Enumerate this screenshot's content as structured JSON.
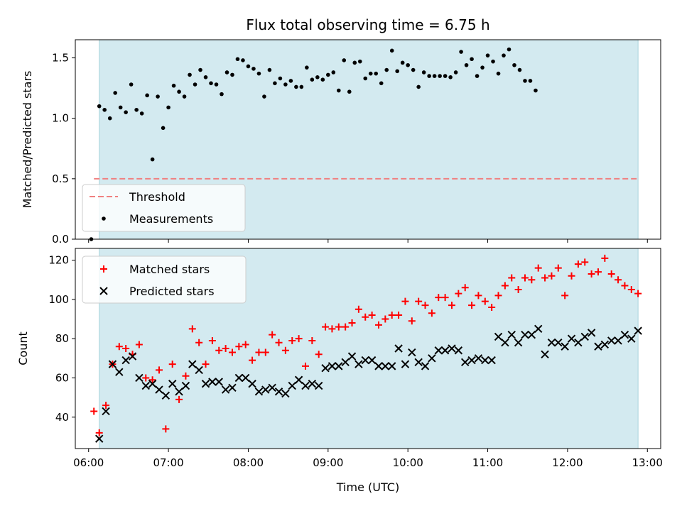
{
  "chart_data": [
    {
      "type": "scatter",
      "title": "Flux total observing time = 6.75 h",
      "ylabel": "Matched/Predicted stars",
      "xlim": [
        "05:50",
        "13:10"
      ],
      "ylim": [
        0,
        1.65
      ],
      "yticks": [
        0,
        0.5,
        1.0,
        1.5
      ],
      "ytick_labels": [
        "0.0",
        "0.5",
        "1.0",
        "1.5"
      ],
      "observing_window": [
        "06:08",
        "12:53"
      ],
      "observing_window_color": "#d3eaf0",
      "legend_position": "lower-left",
      "threshold": {
        "name": "Threshold",
        "value": 0.5,
        "x_range": [
          "06:04",
          "12:53"
        ],
        "color": "#f08080",
        "style": "dashed"
      },
      "series": [
        {
          "name": "Measurements",
          "color": "#000000",
          "marker": "dot",
          "points": [
            [
              "06:02",
              0.0
            ],
            [
              "06:08",
              1.1
            ],
            [
              "06:12",
              1.07
            ],
            [
              "06:16",
              1.0
            ],
            [
              "06:20",
              1.21
            ],
            [
              "06:24",
              1.09
            ],
            [
              "06:28",
              1.05
            ],
            [
              "06:32",
              1.28
            ],
            [
              "06:36",
              1.07
            ],
            [
              "06:40",
              1.04
            ],
            [
              "06:44",
              1.19
            ],
            [
              "06:48",
              0.66
            ],
            [
              "06:52",
              1.18
            ],
            [
              "06:56",
              0.92
            ],
            [
              "07:00",
              1.09
            ],
            [
              "07:04",
              1.27
            ],
            [
              "07:08",
              1.22
            ],
            [
              "07:12",
              1.18
            ],
            [
              "07:16",
              1.36
            ],
            [
              "07:20",
              1.28
            ],
            [
              "07:24",
              1.4
            ],
            [
              "07:28",
              1.34
            ],
            [
              "07:32",
              1.29
            ],
            [
              "07:36",
              1.28
            ],
            [
              "07:40",
              1.2
            ],
            [
              "07:44",
              1.38
            ],
            [
              "07:48",
              1.36
            ],
            [
              "07:52",
              1.49
            ],
            [
              "07:56",
              1.48
            ],
            [
              "08:00",
              1.43
            ],
            [
              "08:04",
              1.41
            ],
            [
              "08:08",
              1.37
            ],
            [
              "08:12",
              1.18
            ],
            [
              "08:16",
              1.4
            ],
            [
              "08:20",
              1.29
            ],
            [
              "08:24",
              1.33
            ],
            [
              "08:28",
              1.28
            ],
            [
              "08:32",
              1.31
            ],
            [
              "08:36",
              1.26
            ],
            [
              "08:40",
              1.26
            ],
            [
              "08:44",
              1.42
            ],
            [
              "08:48",
              1.32
            ],
            [
              "08:52",
              1.34
            ],
            [
              "08:56",
              1.32
            ],
            [
              "09:00",
              1.36
            ],
            [
              "09:04",
              1.38
            ],
            [
              "09:08",
              1.23
            ],
            [
              "09:12",
              1.48
            ],
            [
              "09:16",
              1.22
            ],
            [
              "09:20",
              1.46
            ],
            [
              "09:24",
              1.47
            ],
            [
              "09:28",
              1.33
            ],
            [
              "09:32",
              1.37
            ],
            [
              "09:36",
              1.37
            ],
            [
              "09:40",
              1.29
            ],
            [
              "09:44",
              1.4
            ],
            [
              "09:48",
              1.56
            ],
            [
              "09:52",
              1.39
            ],
            [
              "09:56",
              1.46
            ],
            [
              "10:00",
              1.44
            ],
            [
              "10:04",
              1.4
            ],
            [
              "10:08",
              1.26
            ],
            [
              "10:12",
              1.38
            ],
            [
              "10:16",
              1.35
            ],
            [
              "10:20",
              1.35
            ],
            [
              "10:24",
              1.35
            ],
            [
              "10:28",
              1.35
            ],
            [
              "10:32",
              1.34
            ],
            [
              "10:36",
              1.38
            ],
            [
              "10:40",
              1.55
            ],
            [
              "10:44",
              1.44
            ],
            [
              "10:48",
              1.49
            ],
            [
              "10:52",
              1.35
            ],
            [
              "10:56",
              1.42
            ],
            [
              "11:00",
              1.52
            ],
            [
              "11:04",
              1.47
            ],
            [
              "11:08",
              1.37
            ],
            [
              "11:12",
              1.52
            ],
            [
              "11:16",
              1.57
            ],
            [
              "11:20",
              1.44
            ],
            [
              "11:24",
              1.4
            ],
            [
              "11:28",
              1.31
            ],
            [
              "11:32",
              1.31
            ],
            [
              "11:36",
              1.23
            ]
          ]
        }
      ]
    },
    {
      "type": "scatter",
      "xlabel": "Time (UTC)",
      "ylabel": "Count",
      "xlim": [
        "05:50",
        "13:10"
      ],
      "xticks": [
        "06:00",
        "07:00",
        "08:00",
        "09:00",
        "10:00",
        "11:00",
        "12:00",
        "13:00"
      ],
      "ylim": [
        24,
        126
      ],
      "yticks": [
        40,
        60,
        80,
        100,
        120
      ],
      "ytick_labels": [
        "40",
        "60",
        "80",
        "100",
        "120"
      ],
      "observing_window": [
        "06:08",
        "12:53"
      ],
      "observing_window_color": "#d3eaf0",
      "legend_position": "upper-left",
      "series": [
        {
          "name": "Matched stars",
          "color": "#ff0000",
          "marker": "plus",
          "points": [
            [
              "06:04",
              43
            ],
            [
              "06:08",
              32
            ],
            [
              "06:13",
              46
            ],
            [
              "06:18",
              67
            ],
            [
              "06:23",
              76
            ],
            [
              "06:28",
              75
            ],
            [
              "06:33",
              72
            ],
            [
              "06:38",
              77
            ],
            [
              "06:43",
              60
            ],
            [
              "06:48",
              59
            ],
            [
              "06:53",
              64
            ],
            [
              "06:58",
              34
            ],
            [
              "07:03",
              67
            ],
            [
              "07:08",
              49
            ],
            [
              "07:13",
              61
            ],
            [
              "07:18",
              85
            ],
            [
              "07:23",
              78
            ],
            [
              "07:28",
              67
            ],
            [
              "07:33",
              79
            ],
            [
              "07:38",
              74
            ],
            [
              "07:43",
              75
            ],
            [
              "07:48",
              73
            ],
            [
              "07:53",
              76
            ],
            [
              "07:58",
              77
            ],
            [
              "08:03",
              69
            ],
            [
              "08:08",
              73
            ],
            [
              "08:13",
              73
            ],
            [
              "08:18",
              82
            ],
            [
              "08:23",
              78
            ],
            [
              "08:28",
              74
            ],
            [
              "08:33",
              79
            ],
            [
              "08:38",
              80
            ],
            [
              "08:43",
              66
            ],
            [
              "08:48",
              79
            ],
            [
              "08:53",
              72
            ],
            [
              "08:58",
              86
            ],
            [
              "09:03",
              85
            ],
            [
              "09:08",
              86
            ],
            [
              "09:13",
              86
            ],
            [
              "09:18",
              88
            ],
            [
              "09:23",
              95
            ],
            [
              "09:28",
              91
            ],
            [
              "09:33",
              92
            ],
            [
              "09:38",
              87
            ],
            [
              "09:43",
              90
            ],
            [
              "09:48",
              92
            ],
            [
              "09:53",
              92
            ],
            [
              "09:58",
              99
            ],
            [
              "10:03",
              89
            ],
            [
              "10:08",
              99
            ],
            [
              "10:13",
              97
            ],
            [
              "10:18",
              93
            ],
            [
              "10:23",
              101
            ],
            [
              "10:28",
              101
            ],
            [
              "10:33",
              97
            ],
            [
              "10:38",
              103
            ],
            [
              "10:43",
              106
            ],
            [
              "10:48",
              97
            ],
            [
              "10:53",
              102
            ],
            [
              "10:58",
              99
            ],
            [
              "11:03",
              96
            ],
            [
              "11:08",
              102
            ],
            [
              "11:13",
              107
            ],
            [
              "11:18",
              111
            ],
            [
              "11:23",
              105
            ],
            [
              "11:28",
              111
            ],
            [
              "11:33",
              110
            ],
            [
              "11:38",
              116
            ],
            [
              "11:43",
              111
            ],
            [
              "11:48",
              112
            ],
            [
              "11:53",
              116
            ],
            [
              "11:58",
              102
            ],
            [
              "12:03",
              112
            ],
            [
              "12:08",
              118
            ],
            [
              "12:13",
              119
            ],
            [
              "12:18",
              113
            ],
            [
              "12:23",
              114
            ],
            [
              "12:28",
              121
            ],
            [
              "12:33",
              113
            ],
            [
              "12:38",
              110
            ],
            [
              "12:43",
              107
            ],
            [
              "12:48",
              105
            ],
            [
              "12:53",
              103
            ]
          ]
        },
        {
          "name": "Predicted stars",
          "color": "#000000",
          "marker": "x",
          "points": [
            [
              "06:08",
              29
            ],
            [
              "06:13",
              43
            ],
            [
              "06:18",
              67
            ],
            [
              "06:23",
              63
            ],
            [
              "06:28",
              69
            ],
            [
              "06:33",
              71
            ],
            [
              "06:38",
              60
            ],
            [
              "06:43",
              56
            ],
            [
              "06:48",
              57
            ],
            [
              "06:53",
              54
            ],
            [
              "06:58",
              51
            ],
            [
              "07:03",
              57
            ],
            [
              "07:08",
              53
            ],
            [
              "07:13",
              56
            ],
            [
              "07:18",
              67
            ],
            [
              "07:23",
              64
            ],
            [
              "07:28",
              57
            ],
            [
              "07:33",
              58
            ],
            [
              "07:38",
              58
            ],
            [
              "07:43",
              54
            ],
            [
              "07:48",
              55
            ],
            [
              "07:53",
              60
            ],
            [
              "07:58",
              60
            ],
            [
              "08:03",
              57
            ],
            [
              "08:08",
              53
            ],
            [
              "08:13",
              54
            ],
            [
              "08:18",
              55
            ],
            [
              "08:23",
              53
            ],
            [
              "08:28",
              52
            ],
            [
              "08:33",
              56
            ],
            [
              "08:38",
              59
            ],
            [
              "08:43",
              56
            ],
            [
              "08:48",
              57
            ],
            [
              "08:53",
              56
            ],
            [
              "08:58",
              65
            ],
            [
              "09:03",
              66
            ],
            [
              "09:08",
              66
            ],
            [
              "09:13",
              68
            ],
            [
              "09:18",
              71
            ],
            [
              "09:23",
              67
            ],
            [
              "09:28",
              69
            ],
            [
              "09:33",
              69
            ],
            [
              "09:38",
              66
            ],
            [
              "09:43",
              66
            ],
            [
              "09:48",
              66
            ],
            [
              "09:53",
              75
            ],
            [
              "09:58",
              67
            ],
            [
              "10:03",
              73
            ],
            [
              "10:08",
              68
            ],
            [
              "10:13",
              66
            ],
            [
              "10:18",
              70
            ],
            [
              "10:23",
              74
            ],
            [
              "10:28",
              74
            ],
            [
              "10:33",
              75
            ],
            [
              "10:38",
              74
            ],
            [
              "10:43",
              68
            ],
            [
              "10:48",
              69
            ],
            [
              "10:53",
              70
            ],
            [
              "10:58",
              69
            ],
            [
              "11:03",
              69
            ],
            [
              "11:08",
              81
            ],
            [
              "11:13",
              78
            ],
            [
              "11:18",
              82
            ],
            [
              "11:23",
              78
            ],
            [
              "11:28",
              82
            ],
            [
              "11:33",
              82
            ],
            [
              "11:38",
              85
            ],
            [
              "11:43",
              72
            ],
            [
              "11:48",
              78
            ],
            [
              "11:53",
              78
            ],
            [
              "11:58",
              76
            ],
            [
              "12:03",
              80
            ],
            [
              "12:08",
              78
            ],
            [
              "12:13",
              81
            ],
            [
              "12:18",
              83
            ],
            [
              "12:23",
              76
            ],
            [
              "12:28",
              77
            ],
            [
              "12:33",
              79
            ],
            [
              "12:38",
              79
            ],
            [
              "12:43",
              82
            ],
            [
              "12:48",
              80
            ],
            [
              "12:53",
              84
            ]
          ]
        }
      ]
    }
  ]
}
